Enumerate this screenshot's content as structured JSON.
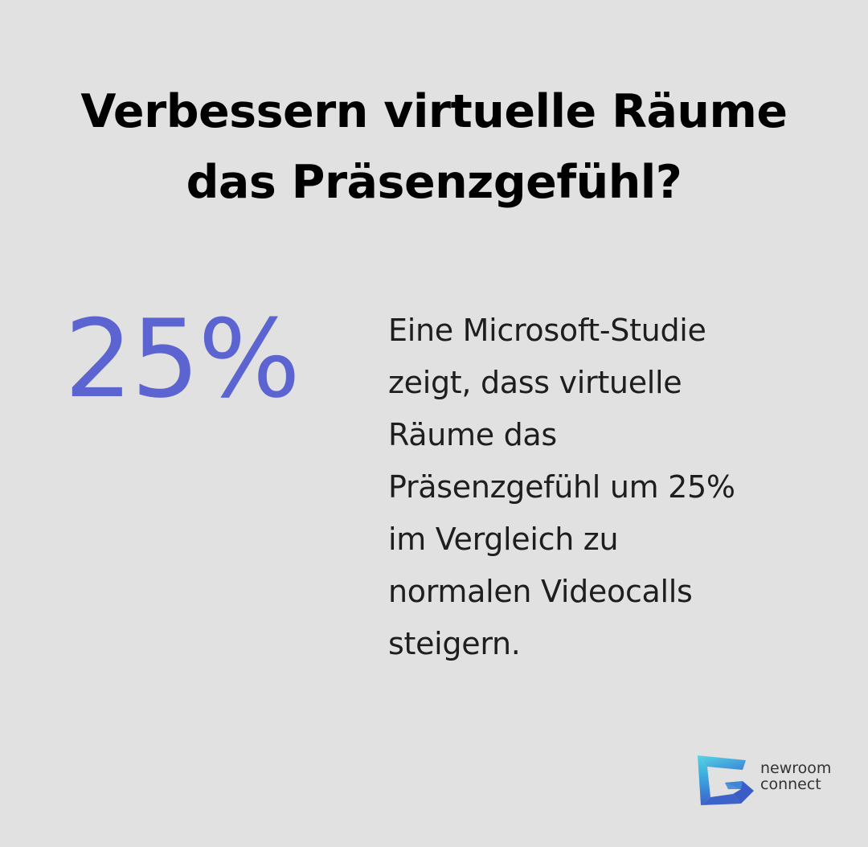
{
  "title": {
    "line1": "Verbessern virtuelle Räume",
    "line2": "das Präsenzgefühl?"
  },
  "stat": {
    "value": "25%",
    "color": "#5b64d0"
  },
  "description": {
    "lines": [
      "Eine Microsoft-Studie",
      "zeigt, dass virtuelle",
      "Räume das",
      "Präsenzgefühl um 25%",
      "im Vergleich zu",
      "normalen Videocalls",
      "steigern."
    ]
  },
  "logo": {
    "line1": "newroom",
    "line2": "connect",
    "icon": "newroom-connect-logo-icon",
    "colors": [
      "#4fd1e0",
      "#3a8fd8",
      "#3b5fc7"
    ]
  }
}
